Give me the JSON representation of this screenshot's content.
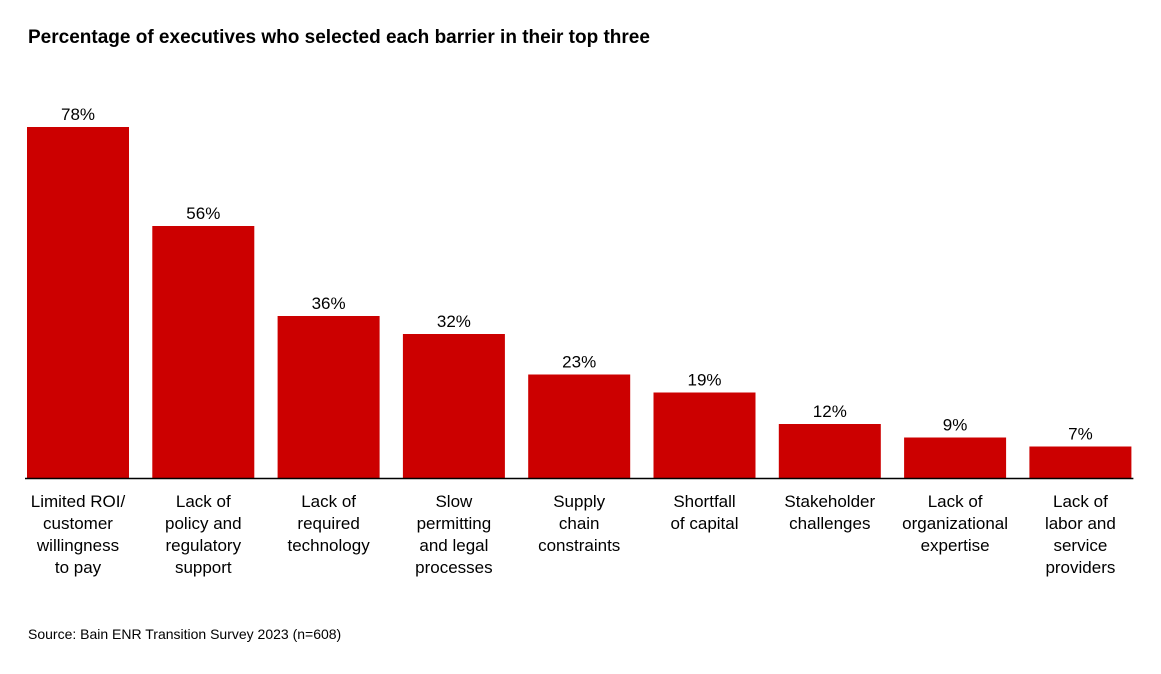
{
  "chart_data": {
    "type": "bar",
    "title": "Percentage of executives who selected each barrier in their top three",
    "categories": [
      "Limited ROI/ customer willingness to pay",
      "Lack of policy and regulatory support",
      "Lack of required technology",
      "Slow permitting and legal processes",
      "Supply chain constraints",
      "Shortfall of capital",
      "Stakeholder challenges",
      "Lack of organizational expertise",
      "Lack of labor and service providers"
    ],
    "category_lines": [
      [
        "Limited ROI/",
        "customer",
        "willingness",
        "to pay"
      ],
      [
        "Lack of",
        "policy and",
        "regulatory",
        "support"
      ],
      [
        "Lack of",
        "required",
        "technology"
      ],
      [
        "Slow",
        "permitting",
        "and legal",
        "processes"
      ],
      [
        "Supply",
        "chain",
        "constraints"
      ],
      [
        "Shortfall",
        "of capital"
      ],
      [
        "Stakeholder",
        "challenges"
      ],
      [
        "Lack of",
        "organizational",
        "expertise"
      ],
      [
        "Lack of",
        "labor and",
        "service",
        "providers"
      ]
    ],
    "values": [
      78,
      56,
      36,
      32,
      23,
      19,
      12,
      9,
      7
    ],
    "value_labels": [
      "78%",
      "56%",
      "36%",
      "32%",
      "23%",
      "19%",
      "12%",
      "9%",
      "7%"
    ],
    "ylim": [
      0,
      78
    ],
    "grid": false,
    "legend": "none",
    "bar_color": "#cc0000"
  },
  "source": "Source: Bain ENR Transition Survey 2023 (n=608)"
}
